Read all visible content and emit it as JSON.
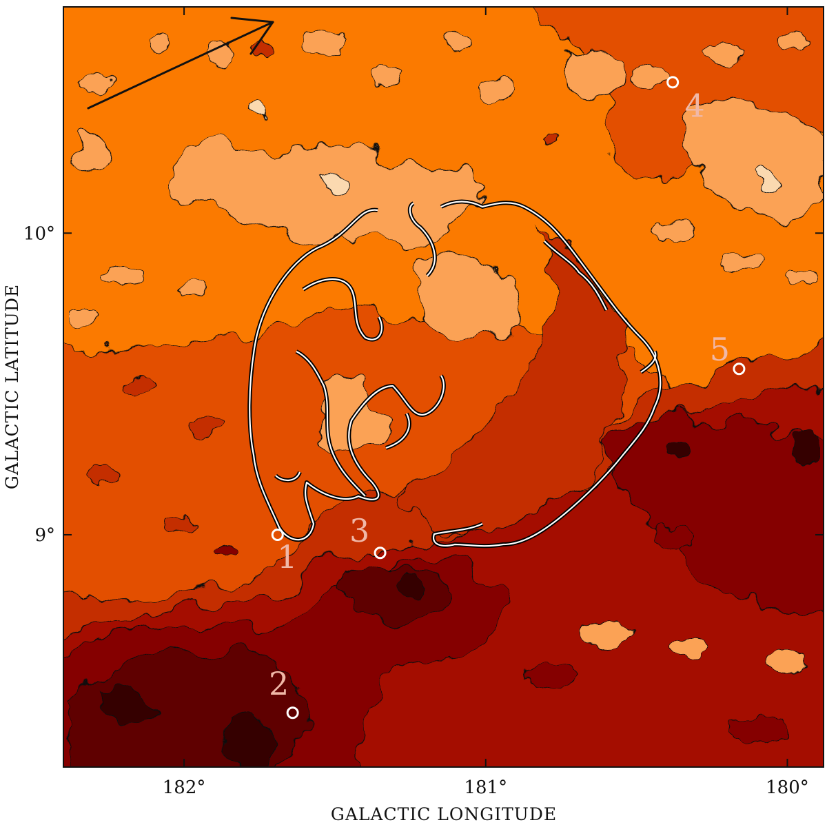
{
  "axes": {
    "xlabel": "GALACTIC LONGITUDE",
    "ylabel": "GALACTIC LATITUDE",
    "xlim": [
      182.4,
      179.88
    ],
    "ylim": [
      8.23,
      10.75
    ],
    "x_ticks": [
      {
        "value": 182,
        "label": "182°"
      },
      {
        "value": 181,
        "label": "181°"
      },
      {
        "value": 180,
        "label": "180°"
      }
    ],
    "y_ticks": [
      {
        "value": 10,
        "label": "10°"
      },
      {
        "value": 9,
        "label": "9°"
      }
    ]
  },
  "colors": {
    "levels": [
      "#fbd9b0",
      "#fba255",
      "#fb7a00",
      "#e35000",
      "#c42e00",
      "#a40d00",
      "#850400",
      "#5e0000",
      "#350000",
      "#1a0000"
    ],
    "frame": "#111111",
    "marker": "#ffffff",
    "marker_label": "#f0b8a8"
  },
  "markers": [
    {
      "id": "1",
      "label": "1",
      "l": 181.69,
      "b": 9.0
    },
    {
      "id": "2",
      "label": "2",
      "l": 181.64,
      "b": 8.41
    },
    {
      "id": "3",
      "label": "3",
      "l": 181.35,
      "b": 8.94
    },
    {
      "id": "4",
      "label": "4",
      "l": 180.38,
      "b": 10.5
    },
    {
      "id": "5",
      "label": "5",
      "l": 180.16,
      "b": 9.55
    }
  ],
  "annotations": {
    "arrow": "direction-arrow"
  }
}
